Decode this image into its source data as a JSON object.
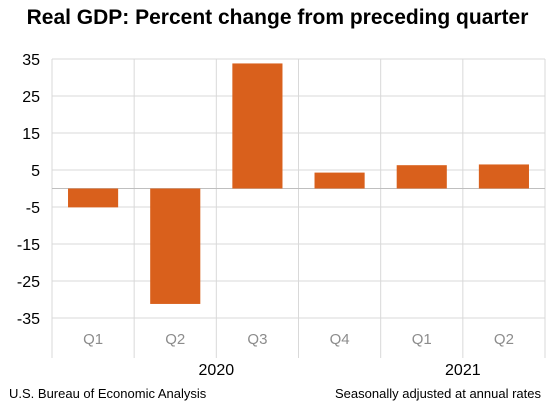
{
  "chart_data": {
    "type": "bar",
    "title": "Real GDP:  Percent change from preceding quarter",
    "categories": [
      "Q1",
      "Q2",
      "Q3",
      "Q4",
      "Q1",
      "Q2"
    ],
    "groups": [
      {
        "label": "2020",
        "categories": [
          "Q1",
          "Q2",
          "Q3",
          "Q4"
        ]
      },
      {
        "label": "2021",
        "categories": [
          "Q1",
          "Q2"
        ]
      }
    ],
    "values": [
      -5.1,
      -31.2,
      33.8,
      4.3,
      6.3,
      6.5
    ],
    "ylim": [
      -35,
      35
    ],
    "yticks": [
      35,
      25,
      15,
      5,
      -5,
      -15,
      -25,
      -35
    ],
    "ytick_labels": [
      "35",
      "25",
      "15",
      "5",
      "-5",
      "-15",
      "-25",
      "-35"
    ],
    "grid": true,
    "bar_color": "#D9601C"
  },
  "footer": {
    "source": "U.S. Bureau of Economic Analysis",
    "note": "Seasonally adjusted at annual rates"
  }
}
